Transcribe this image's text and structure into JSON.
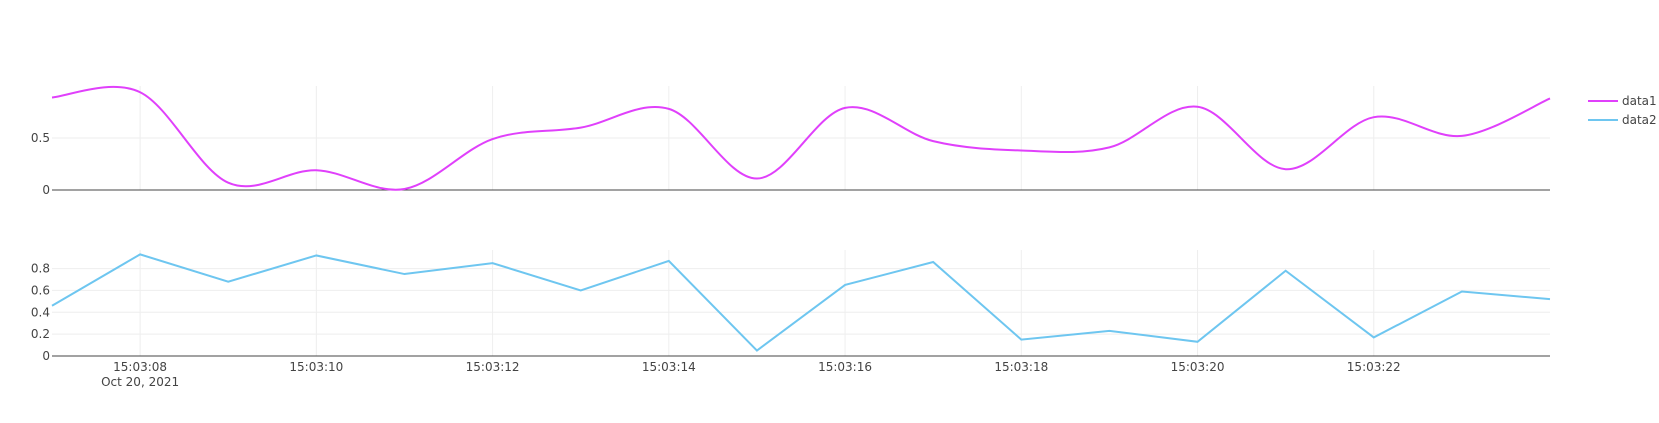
{
  "chart_data": {
    "type": "line",
    "x_date_label": "Oct 20, 2021",
    "x": [
      "15:03:07",
      "15:03:08",
      "15:03:09",
      "15:03:10",
      "15:03:11",
      "15:03:12",
      "15:03:13",
      "15:03:14",
      "15:03:15",
      "15:03:16",
      "15:03:17",
      "15:03:18",
      "15:03:19",
      "15:03:20",
      "15:03:21",
      "15:03:22",
      "15:03:23",
      "15:03:24"
    ],
    "x_ticks": [
      "15:03:08",
      "15:03:10",
      "15:03:12",
      "15:03:14",
      "15:03:16",
      "15:03:18",
      "15:03:20",
      "15:03:22"
    ],
    "xlim": [
      "15:03:07",
      "15:03:24"
    ],
    "legend_position": "top-right",
    "grid": true,
    "subplots": [
      {
        "series_name": "data1",
        "color": "#e040fb",
        "line_shape": "spline",
        "ylim": [
          0,
          1
        ],
        "y_ticks": [
          0,
          0.5
        ],
        "values": [
          0.89,
          0.94,
          0.07,
          0.19,
          0.01,
          0.49,
          0.6,
          0.78,
          0.11,
          0.79,
          0.47,
          0.38,
          0.41,
          0.8,
          0.2,
          0.7,
          0.52,
          0.88
        ]
      },
      {
        "series_name": "data2",
        "color": "#6ec6f0",
        "line_shape": "linear",
        "ylim": [
          0,
          0.97
        ],
        "y_ticks": [
          0,
          0.2,
          0.4,
          0.6,
          0.8
        ],
        "values": [
          0.46,
          0.93,
          0.68,
          0.92,
          0.75,
          0.85,
          0.6,
          0.87,
          0.05,
          0.65,
          0.86,
          0.15,
          0.23,
          0.13,
          0.78,
          0.17,
          0.59,
          0.52
        ]
      }
    ]
  }
}
